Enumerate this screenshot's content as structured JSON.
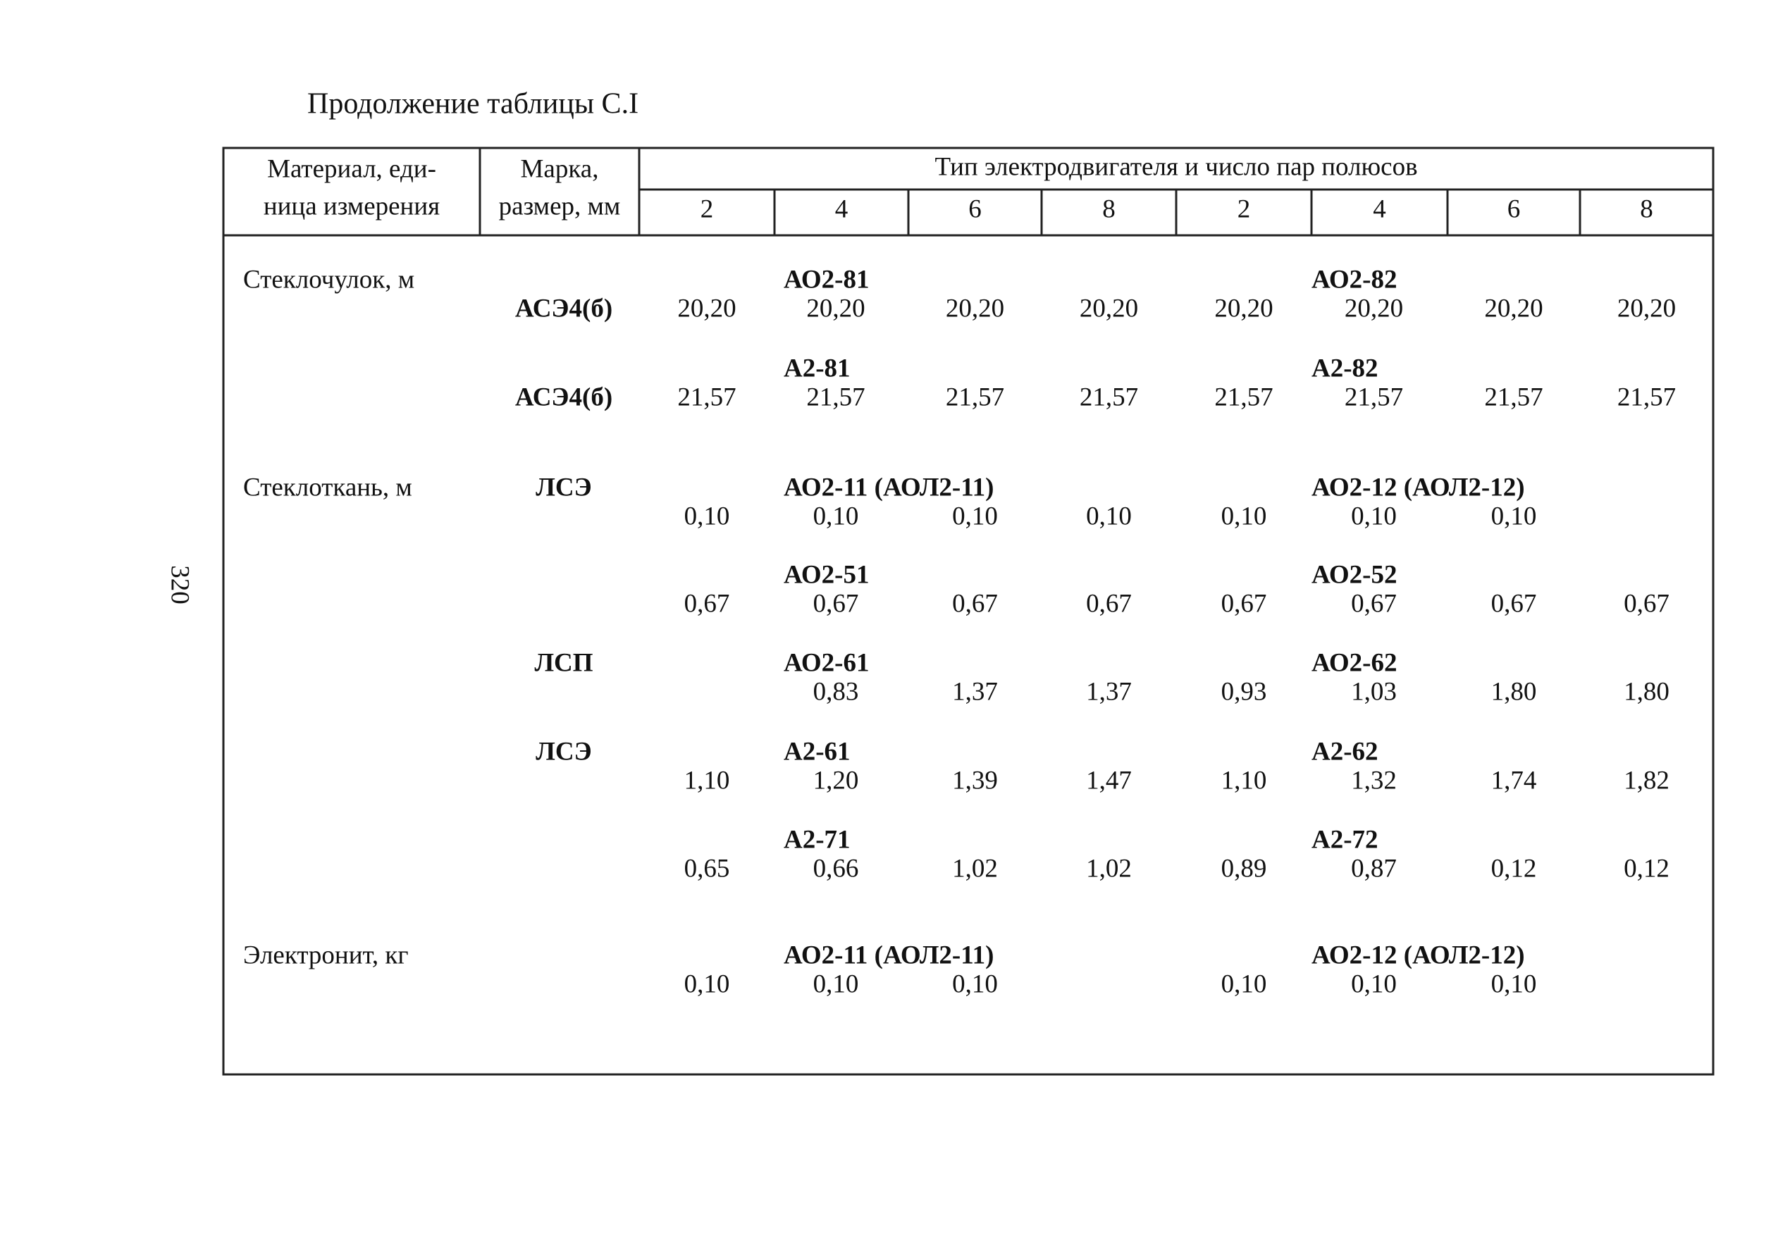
{
  "header": {
    "title": "Продолжение таблицы С.I",
    "page_number": "320"
  },
  "table": {
    "columns": {
      "material": [
        "Материал, еди-",
        "ница измерения"
      ],
      "mark": [
        "Марка,",
        "размер, мм"
      ],
      "motor_group": "Тип электродвигателя и число пар полюсов",
      "poles": [
        "2",
        "4",
        "6",
        "8",
        "2",
        "4",
        "6",
        "8"
      ]
    },
    "rows": [
      {
        "material": "Стеклочулок, м",
        "mark": "АСЭ4(б)",
        "motor_left": "АО2-81",
        "motor_right": "АО2-82",
        "values": [
          "20,20",
          "20,20",
          "20,20",
          "20,20",
          "20,20",
          "20,20",
          "20,20",
          "20,20"
        ]
      },
      {
        "mark": "АСЭ4(б)",
        "motor_left": "А2-81",
        "motor_right": "А2-82",
        "values": [
          "21,57",
          "21,57",
          "21,57",
          "21,57",
          "21,57",
          "21,57",
          "21,57",
          "21,57"
        ]
      },
      {
        "material": "Стеклоткань, м",
        "mark": "ЛСЭ",
        "motor_left": "АО2-11 (АОЛ2-11)",
        "motor_right": "АО2-12 (АОЛ2-12)",
        "values": [
          "0,10",
          "0,10",
          "0,10",
          "0,10",
          "0,10",
          "0,10",
          "0,10",
          null
        ]
      },
      {
        "motor_left": "АО2-51",
        "motor_right": "АО2-52",
        "values": [
          "0,67",
          "0,67",
          "0,67",
          "0,67",
          "0,67",
          "0,67",
          "0,67",
          "0,67"
        ]
      },
      {
        "mark": "ЛСП",
        "motor_left": "АО2-61",
        "motor_right": "АО2-62",
        "values": [
          null,
          "0,83",
          "1,37",
          "1,37",
          "0,93",
          "1,03",
          "1,80",
          "1,80"
        ]
      },
      {
        "mark": "ЛСЭ",
        "motor_left": "А2-61",
        "motor_right": "А2-62",
        "values": [
          "1,10",
          "1,20",
          "1,39",
          "1,47",
          "1,10",
          "1,32",
          "1,74",
          "1,82"
        ]
      },
      {
        "motor_left": "А2-71",
        "motor_right": "А2-72",
        "values": [
          "0,65",
          "0,66",
          "1,02",
          "1,02",
          "0,89",
          "0,87",
          "0,12",
          "0,12"
        ]
      },
      {
        "material": "Электронит, кг",
        "motor_left": "АО2-11 (АОЛ2-11)",
        "motor_right": "АО2-12 (АОЛ2-12)",
        "values": [
          "0,10",
          "0,10",
          "0,10",
          null,
          "0,10",
          "0,10",
          "0,10",
          null
        ]
      }
    ]
  }
}
